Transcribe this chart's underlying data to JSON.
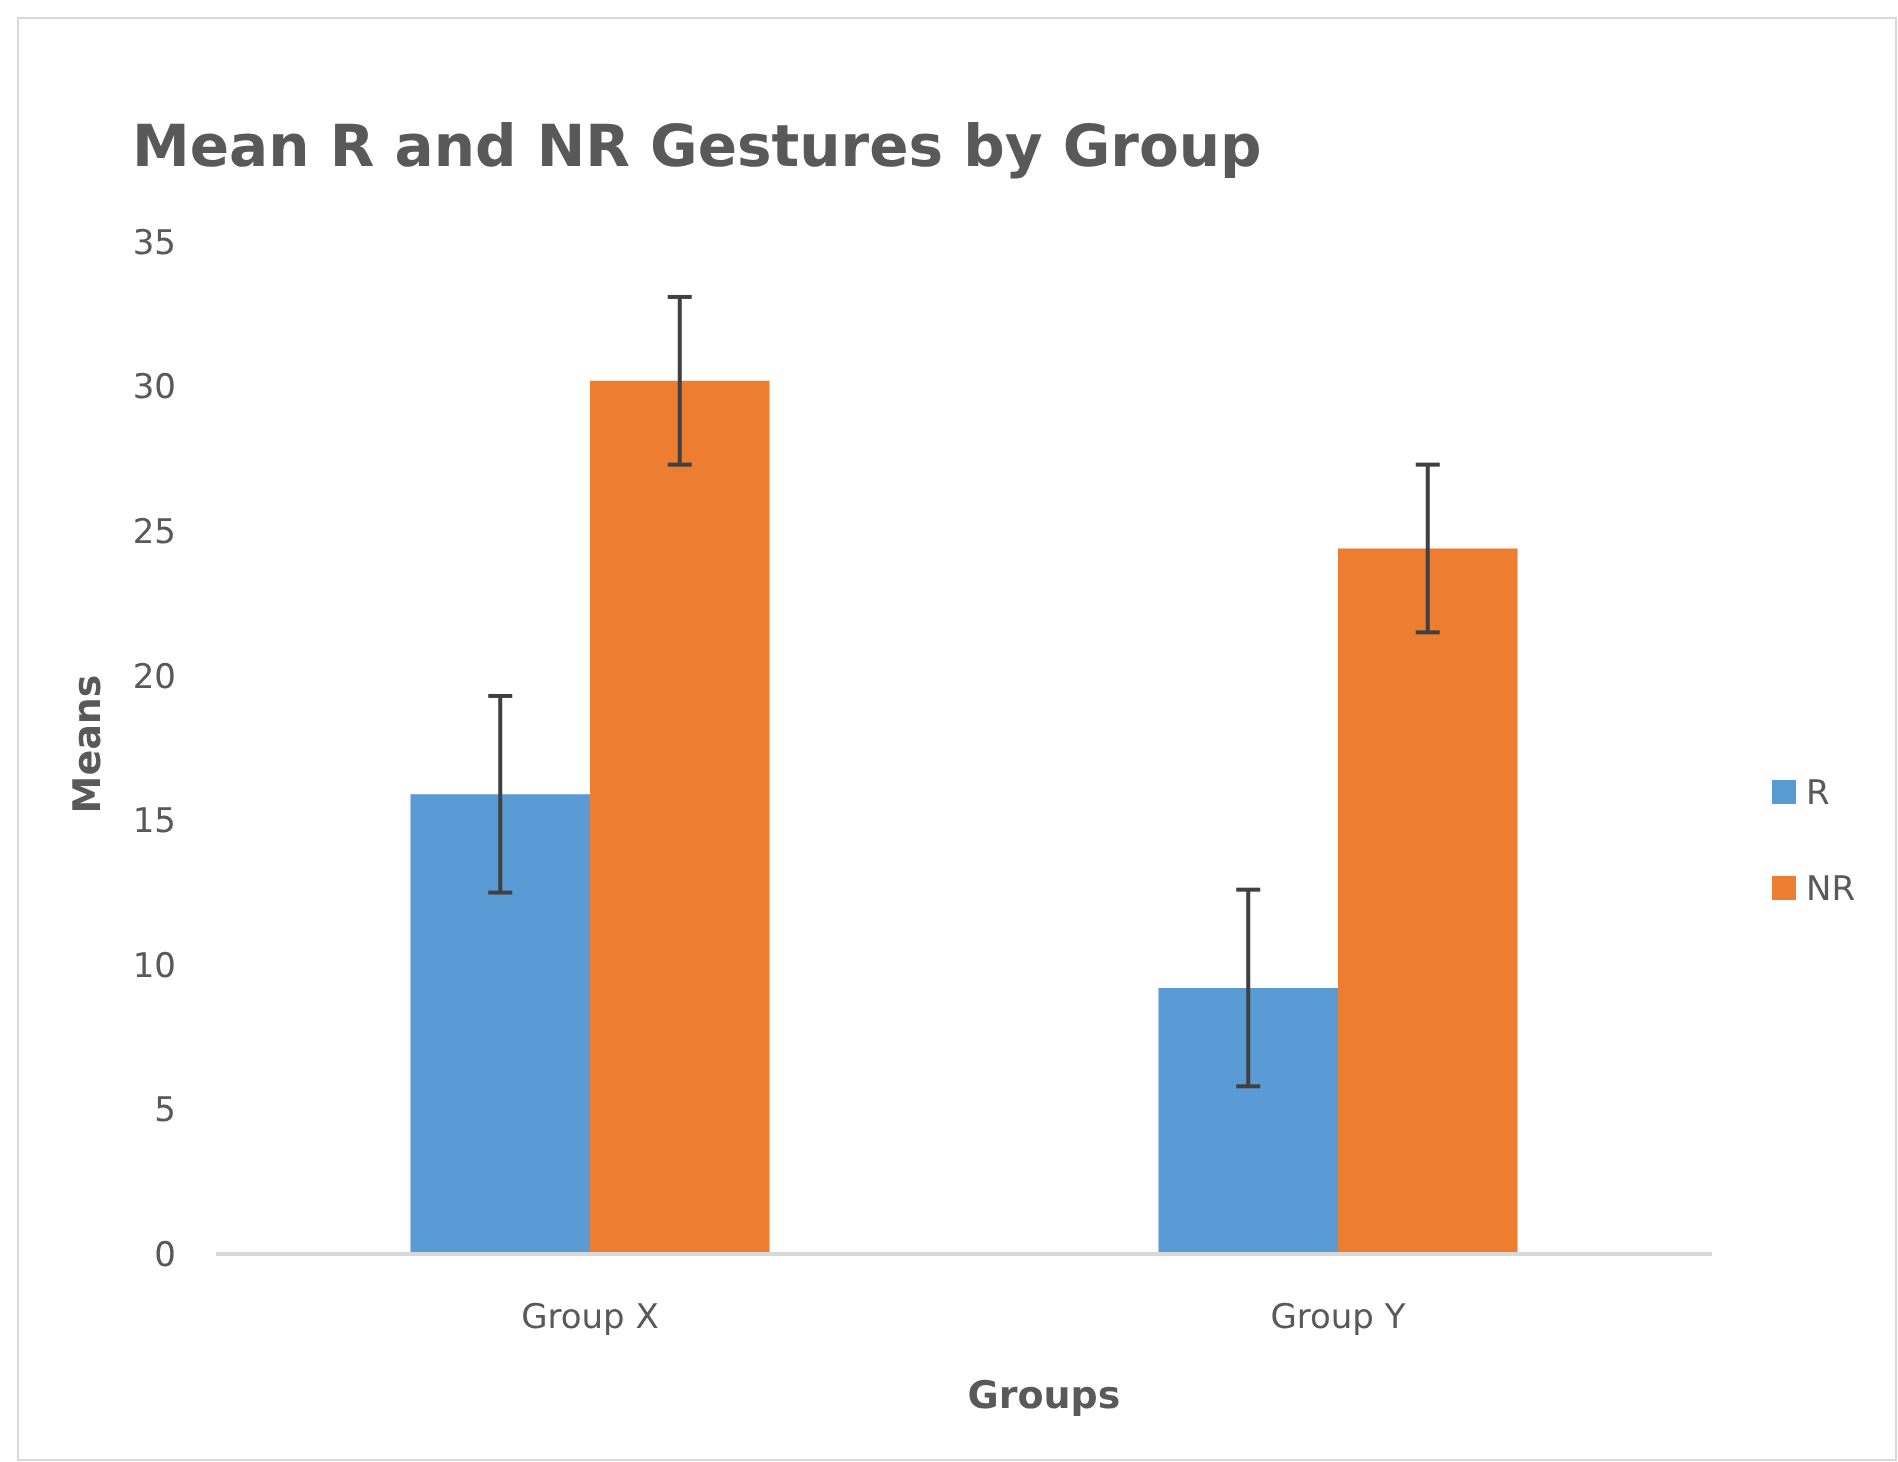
{
  "chart_data": {
    "type": "bar",
    "title": "Mean R and NR Gestures by Group",
    "xlabel": "Groups",
    "ylabel": "Means",
    "categories": [
      "Group X",
      "Group Y"
    ],
    "series": [
      {
        "name": "R",
        "color": "#5b9bd5",
        "values": [
          15.9,
          9.2
        ],
        "errors": [
          3.4,
          3.4
        ]
      },
      {
        "name": "NR",
        "color": "#ed7d31",
        "values": [
          30.2,
          24.4
        ],
        "errors": [
          2.9,
          2.9
        ]
      }
    ],
    "ylim": [
      0,
      35
    ],
    "yticks": [
      0,
      5,
      10,
      15,
      20,
      25,
      30,
      35
    ],
    "grid": false,
    "legend": "right"
  }
}
